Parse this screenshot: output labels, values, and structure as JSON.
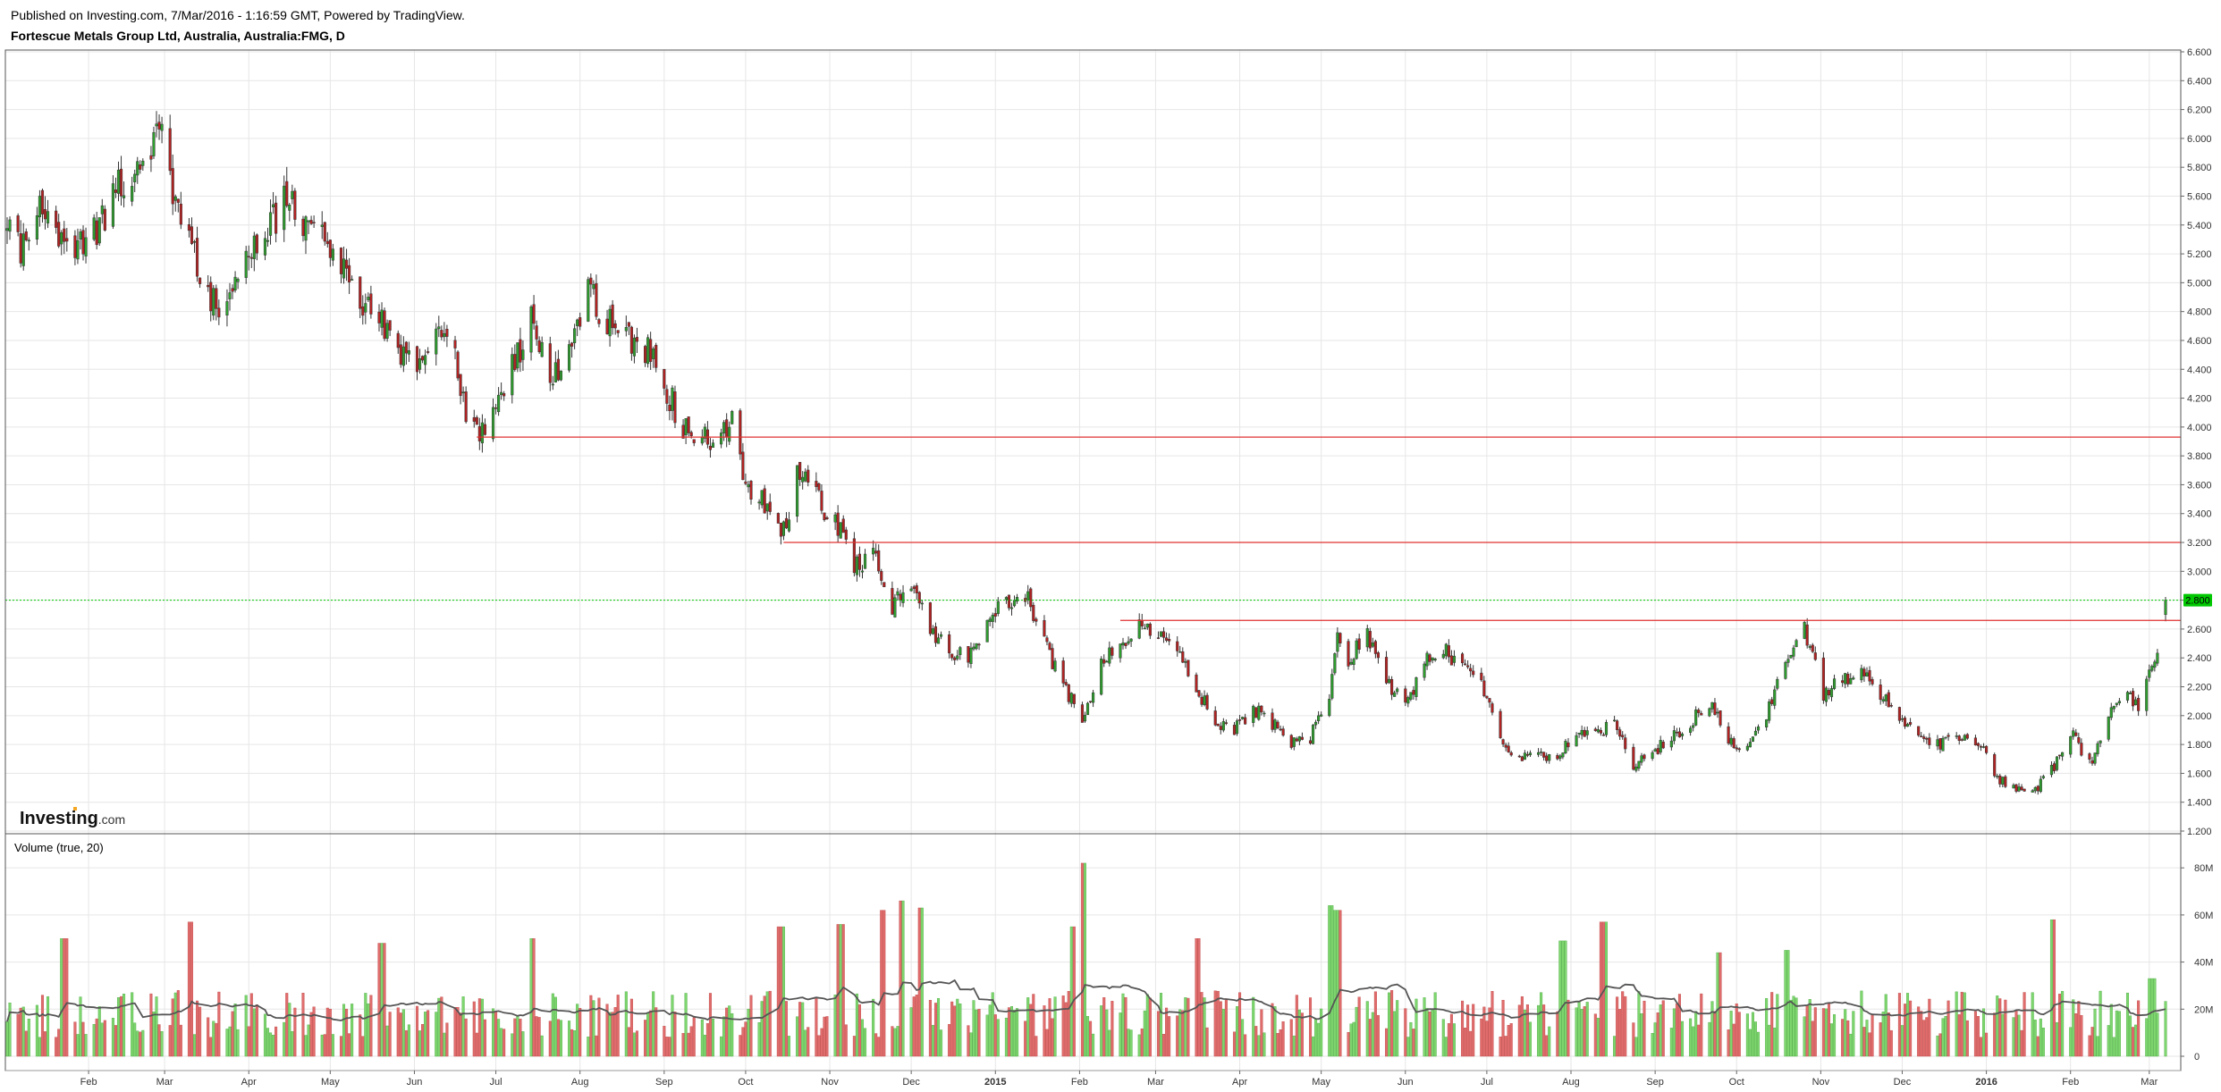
{
  "header": {
    "published": "Published on Investing.com, 7/Mar/2016 - 1:16:59 GMT, Powered by TradingView.",
    "title": "Fortescue Metals Group Ltd, Australia, Australia:FMG, D"
  },
  "brand": {
    "name": "Investing",
    "suffix": ".com",
    "dot_color": "#f5a623"
  },
  "colors": {
    "up": "#2e9e2e",
    "down": "#b22222",
    "vol_up": "#7ed66e",
    "vol_down": "#e06c6c",
    "resistance": "#e03030",
    "last_price": "#00c800",
    "ma": "#555555",
    "grid": "#e6e6e6"
  },
  "chart_data": [
    {
      "type": "candlestick",
      "x_dates": [
        "2014-01-02",
        "2016-03-07"
      ],
      "x_ticks": [
        {
          "label": "Feb",
          "date": "2014-02-01"
        },
        {
          "label": "Mar",
          "date": "2014-03-01"
        },
        {
          "label": "Apr",
          "date": "2014-04-01"
        },
        {
          "label": "May",
          "date": "2014-05-01"
        },
        {
          "label": "Jun",
          "date": "2014-06-01"
        },
        {
          "label": "Jul",
          "date": "2014-07-01"
        },
        {
          "label": "Aug",
          "date": "2014-08-01"
        },
        {
          "label": "Sep",
          "date": "2014-09-01"
        },
        {
          "label": "Oct",
          "date": "2014-10-01"
        },
        {
          "label": "Nov",
          "date": "2014-11-01"
        },
        {
          "label": "Dec",
          "date": "2014-12-01"
        },
        {
          "label": "2015",
          "date": "2015-01-01",
          "bold": true
        },
        {
          "label": "Feb",
          "date": "2015-02-01"
        },
        {
          "label": "Mar",
          "date": "2015-03-01"
        },
        {
          "label": "Apr",
          "date": "2015-04-01"
        },
        {
          "label": "May",
          "date": "2015-05-01"
        },
        {
          "label": "Jun",
          "date": "2015-06-01"
        },
        {
          "label": "Jul",
          "date": "2015-07-01"
        },
        {
          "label": "Aug",
          "date": "2015-08-01"
        },
        {
          "label": "Sep",
          "date": "2015-09-01"
        },
        {
          "label": "Oct",
          "date": "2015-10-01"
        },
        {
          "label": "Nov",
          "date": "2015-11-01"
        },
        {
          "label": "Dec",
          "date": "2015-12-01"
        },
        {
          "label": "2016",
          "date": "2016-01-01",
          "bold": true
        },
        {
          "label": "Feb",
          "date": "2016-02-01"
        },
        {
          "label": "Mar",
          "date": "2016-03-01"
        }
      ],
      "ylim": [
        1.2,
        6.6
      ],
      "y_ticks": [
        "6.600",
        "6.400",
        "6.200",
        "6.000",
        "5.800",
        "5.600",
        "5.400",
        "5.200",
        "5.000",
        "4.800",
        "4.600",
        "4.400",
        "4.200",
        "4.000",
        "3.800",
        "3.600",
        "3.400",
        "3.200",
        "3.000",
        "2.800",
        "2.600",
        "2.400",
        "2.200",
        "2.000",
        "1.800",
        "1.600",
        "1.400",
        "1.200"
      ],
      "close_path": [
        [
          "2014-01-02",
          5.4
        ],
        [
          "2014-01-07",
          5.25
        ],
        [
          "2014-01-14",
          5.6
        ],
        [
          "2014-01-20",
          5.3
        ],
        [
          "2014-01-27",
          5.2
        ],
        [
          "2014-02-03",
          5.35
        ],
        [
          "2014-02-10",
          5.6
        ],
        [
          "2014-02-17",
          5.75
        ],
        [
          "2014-02-24",
          6.0
        ],
        [
          "2014-02-28",
          6.05
        ],
        [
          "2014-03-05",
          5.55
        ],
        [
          "2014-03-11",
          5.4
        ],
        [
          "2014-03-14",
          5.05
        ],
        [
          "2014-03-19",
          4.85
        ],
        [
          "2014-03-26",
          4.95
        ],
        [
          "2014-04-01",
          5.2
        ],
        [
          "2014-04-08",
          5.35
        ],
        [
          "2014-04-14",
          5.6
        ],
        [
          "2014-04-21",
          5.45
        ],
        [
          "2014-04-28",
          5.35
        ],
        [
          "2014-05-05",
          5.1
        ],
        [
          "2014-05-12",
          4.9
        ],
        [
          "2014-05-19",
          4.75
        ],
        [
          "2014-05-26",
          4.55
        ],
        [
          "2014-06-02",
          4.4
        ],
        [
          "2014-06-09",
          4.6
        ],
        [
          "2014-06-16",
          4.5
        ],
        [
          "2014-06-20",
          4.05
        ],
        [
          "2014-06-24",
          3.92
        ],
        [
          "2014-07-01",
          4.2
        ],
        [
          "2014-07-08",
          4.45
        ],
        [
          "2014-07-14",
          4.75
        ],
        [
          "2014-07-21",
          4.3
        ],
        [
          "2014-07-28",
          4.6
        ],
        [
          "2014-08-04",
          4.95
        ],
        [
          "2014-08-11",
          4.75
        ],
        [
          "2014-08-18",
          4.65
        ],
        [
          "2014-08-25",
          4.55
        ],
        [
          "2014-09-01",
          4.3
        ],
        [
          "2014-09-08",
          4.0
        ],
        [
          "2014-09-15",
          3.9
        ],
        [
          "2014-09-22",
          3.95
        ],
        [
          "2014-09-26",
          4.05
        ],
        [
          "2014-10-01",
          3.55
        ],
        [
          "2014-10-07",
          3.5
        ],
        [
          "2014-10-13",
          3.3
        ],
        [
          "2014-10-16",
          3.25
        ],
        [
          "2014-10-20",
          3.7
        ],
        [
          "2014-10-27",
          3.5
        ],
        [
          "2014-11-03",
          3.35
        ],
        [
          "2014-11-10",
          3.05
        ],
        [
          "2014-11-17",
          3.1
        ],
        [
          "2014-11-24",
          2.75
        ],
        [
          "2014-12-01",
          2.95
        ],
        [
          "2014-12-08",
          2.6
        ],
        [
          "2014-12-15",
          2.45
        ],
        [
          "2014-12-22",
          2.4
        ],
        [
          "2014-12-29",
          2.65
        ],
        [
          "2015-01-05",
          2.8
        ],
        [
          "2015-01-12",
          2.85
        ],
        [
          "2015-01-19",
          2.5
        ],
        [
          "2015-01-26",
          2.2
        ],
        [
          "2015-02-02",
          2.0
        ],
        [
          "2015-02-09",
          2.35
        ],
        [
          "2015-02-16",
          2.5
        ],
        [
          "2015-02-23",
          2.65
        ],
        [
          "2015-03-02",
          2.55
        ],
        [
          "2015-03-09",
          2.45
        ],
        [
          "2015-03-16",
          2.2
        ],
        [
          "2015-03-23",
          1.95
        ],
        [
          "2015-03-30",
          1.9
        ],
        [
          "2015-04-06",
          2.05
        ],
        [
          "2015-04-13",
          1.95
        ],
        [
          "2015-04-20",
          1.82
        ],
        [
          "2015-04-27",
          1.85
        ],
        [
          "2015-05-04",
          2.15
        ],
        [
          "2015-05-07",
          2.55
        ],
        [
          "2015-05-11",
          2.4
        ],
        [
          "2015-05-18",
          2.55
        ],
        [
          "2015-05-25",
          2.25
        ],
        [
          "2015-06-01",
          2.05
        ],
        [
          "2015-06-08",
          2.4
        ],
        [
          "2015-06-15",
          2.45
        ],
        [
          "2015-06-22",
          2.35
        ],
        [
          "2015-06-29",
          2.2
        ],
        [
          "2015-07-06",
          1.85
        ],
        [
          "2015-07-13",
          1.7
        ],
        [
          "2015-07-20",
          1.75
        ],
        [
          "2015-07-27",
          1.7
        ],
        [
          "2015-08-03",
          1.9
        ],
        [
          "2015-08-10",
          1.85
        ],
        [
          "2015-08-17",
          1.95
        ],
        [
          "2015-08-24",
          1.65
        ],
        [
          "2015-08-31",
          1.75
        ],
        [
          "2015-09-07",
          1.85
        ],
        [
          "2015-09-14",
          1.95
        ],
        [
          "2015-09-21",
          2.1
        ],
        [
          "2015-09-28",
          1.85
        ],
        [
          "2015-10-05",
          1.75
        ],
        [
          "2015-10-12",
          2.0
        ],
        [
          "2015-10-19",
          2.4
        ],
        [
          "2015-10-26",
          2.6
        ],
        [
          "2015-11-02",
          2.15
        ],
        [
          "2015-11-09",
          2.25
        ],
        [
          "2015-11-16",
          2.3
        ],
        [
          "2015-11-23",
          2.15
        ],
        [
          "2015-11-30",
          2.0
        ],
        [
          "2015-12-07",
          1.85
        ],
        [
          "2015-12-14",
          1.8
        ],
        [
          "2015-12-21",
          1.85
        ],
        [
          "2015-12-29",
          1.82
        ],
        [
          "2016-01-05",
          1.55
        ],
        [
          "2016-01-12",
          1.5
        ],
        [
          "2016-01-19",
          1.48
        ],
        [
          "2016-01-26",
          1.65
        ],
        [
          "2016-02-02",
          1.85
        ],
        [
          "2016-02-09",
          1.65
        ],
        [
          "2016-02-16",
          2.05
        ],
        [
          "2016-02-22",
          2.15
        ],
        [
          "2016-02-26",
          2.05
        ],
        [
          "2016-03-01",
          2.35
        ],
        [
          "2016-03-04",
          2.45
        ],
        [
          "2016-03-07",
          2.8
        ]
      ],
      "last_price": "2.800",
      "resistance_lines": [
        {
          "start": "2014-06-24",
          "value": 3.93
        },
        {
          "start": "2014-10-15",
          "value": 3.2
        },
        {
          "start": "2015-02-16",
          "value": 2.66
        }
      ]
    },
    {
      "type": "bar",
      "title": "Volume (true, 20)",
      "ylim": [
        0,
        85
      ],
      "y_ticks": [
        "80M",
        "60M",
        "40M",
        "20M",
        "0"
      ],
      "ma_period": 20,
      "spikes": [
        [
          "2014-01-23",
          50
        ],
        [
          "2014-03-10",
          57
        ],
        [
          "2014-05-20",
          48
        ],
        [
          "2014-07-14",
          50
        ],
        [
          "2014-10-14",
          55
        ],
        [
          "2014-11-21",
          62
        ],
        [
          "2014-11-28",
          66
        ],
        [
          "2014-12-05",
          63
        ],
        [
          "2014-11-05",
          56
        ],
        [
          "2015-02-02",
          82
        ],
        [
          "2015-01-30",
          55
        ],
        [
          "2015-03-16",
          50
        ],
        [
          "2015-05-04",
          64
        ],
        [
          "2015-05-07",
          62
        ],
        [
          "2015-07-29",
          49
        ],
        [
          "2015-08-13",
          57
        ],
        [
          "2015-09-25",
          44
        ],
        [
          "2015-10-19",
          45
        ],
        [
          "2016-01-25",
          58
        ],
        [
          "2016-03-02",
          33
        ]
      ]
    }
  ]
}
